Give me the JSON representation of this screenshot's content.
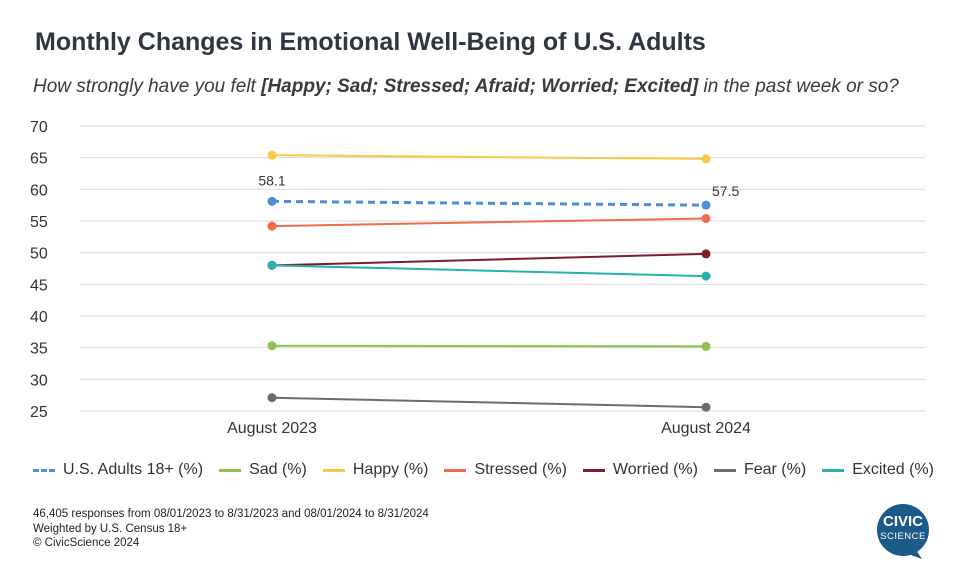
{
  "title": "Monthly Changes in Emotional Well-Being of U.S. Adults",
  "subtitle": {
    "prefix": "How strongly have you felt ",
    "bold": "[Happy; Sad; Stressed; Afraid; Worried; Excited]",
    "suffix": " in the past week or so?"
  },
  "chart_data": {
    "type": "line",
    "x": [
      "August 2023",
      "August 2024"
    ],
    "ylim": [
      25,
      70
    ],
    "yticks": [
      25,
      30,
      35,
      40,
      45,
      50,
      55,
      60,
      65,
      70
    ],
    "grid": true,
    "legend_position": "bottom",
    "series": [
      {
        "name": "U.S. Adults 18+ (%)",
        "values": [
          58.1,
          57.5
        ],
        "color": "#4a90d9",
        "dashed": true,
        "labels": [
          "58.1",
          "57.5"
        ]
      },
      {
        "name": "Sad (%)",
        "values": [
          35.3,
          35.2
        ],
        "color": "#8bc34a"
      },
      {
        "name": "Happy (%)",
        "values": [
          65.4,
          64.8
        ],
        "color": "#f7c948"
      },
      {
        "name": "Stressed (%)",
        "values": [
          54.2,
          55.4
        ],
        "color": "#ef6c4b"
      },
      {
        "name": "Worried (%)",
        "values": [
          48.0,
          49.8
        ],
        "color": "#7b1e2b"
      },
      {
        "name": "Fear (%)",
        "values": [
          27.1,
          25.6
        ],
        "color": "#6b6b73"
      },
      {
        "name": "Excited (%)",
        "values": [
          48.0,
          46.3
        ],
        "color": "#26b3ad"
      }
    ]
  },
  "footer": {
    "line1": "46,405 responses from 08/01/2023 to 8/31/2023 and 08/01/2024 to 8/31/2024",
    "line2": "Weighted by U.S. Census 18+",
    "line3": "© CivicScience 2024"
  },
  "logo": {
    "line1": "CIVIC",
    "line2": "SCIENCE",
    "color": "#1c5a8a"
  }
}
